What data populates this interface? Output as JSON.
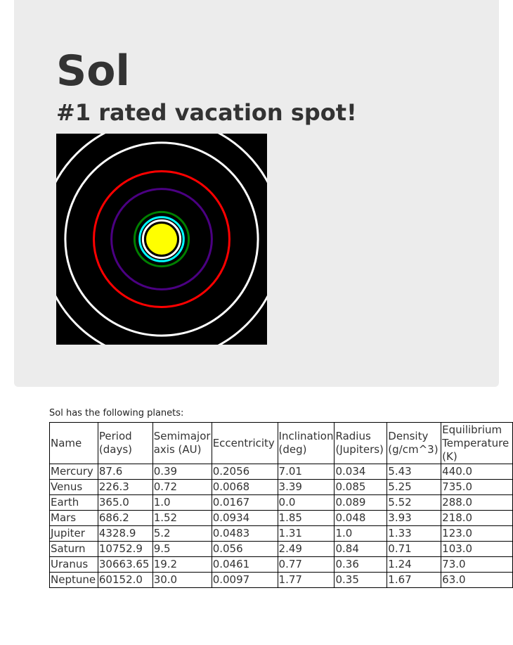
{
  "star": {
    "name": "Sol",
    "tagline": "#1 rated vacation spot!"
  },
  "orbit_diagram": {
    "star_color": "#ffff00",
    "orbits": [
      {
        "planet": "Mercury",
        "color": "#ff6600"
      },
      {
        "planet": "Venus",
        "color": "#ffffff"
      },
      {
        "planet": "Earth",
        "color": "#00ffff"
      },
      {
        "planet": "Mars",
        "color": "#008000"
      },
      {
        "planet": "Jupiter",
        "color": "#4b0082"
      },
      {
        "planet": "Saturn",
        "color": "#ff0000"
      },
      {
        "planet": "Uranus",
        "color": "#ffffff"
      },
      {
        "planet": "Neptune",
        "color": "#ffffff"
      }
    ]
  },
  "planets_section": {
    "intro": "Sol has the following planets:",
    "columns": [
      "Name",
      "Period (days)",
      "Semimajor axis (AU)",
      "Eccentricity",
      "Inclination (deg)",
      "Radius (Jupiters)",
      "Density (g/cm^3)",
      "Equilibrium Temperature (K)"
    ],
    "rows": [
      [
        "Mercury",
        "87.6",
        "0.39",
        "0.2056",
        "7.01",
        "0.034",
        "5.43",
        "440.0"
      ],
      [
        "Venus",
        "226.3",
        "0.72",
        "0.0068",
        "3.39",
        "0.085",
        "5.25",
        "735.0"
      ],
      [
        "Earth",
        "365.0",
        "1.0",
        "0.0167",
        "0.0",
        "0.089",
        "5.52",
        "288.0"
      ],
      [
        "Mars",
        "686.2",
        "1.52",
        "0.0934",
        "1.85",
        "0.048",
        "3.93",
        "218.0"
      ],
      [
        "Jupiter",
        "4328.9",
        "5.2",
        "0.0483",
        "1.31",
        "1.0",
        "1.33",
        "123.0"
      ],
      [
        "Saturn",
        "10752.9",
        "9.5",
        "0.056",
        "2.49",
        "0.84",
        "0.71",
        "103.0"
      ],
      [
        "Uranus",
        "30663.65",
        "19.2",
        "0.0461",
        "0.77",
        "0.36",
        "1.24",
        "73.0"
      ],
      [
        "Neptune",
        "60152.0",
        "30.0",
        "0.0097",
        "1.77",
        "0.35",
        "1.67",
        "63.0"
      ]
    ]
  }
}
